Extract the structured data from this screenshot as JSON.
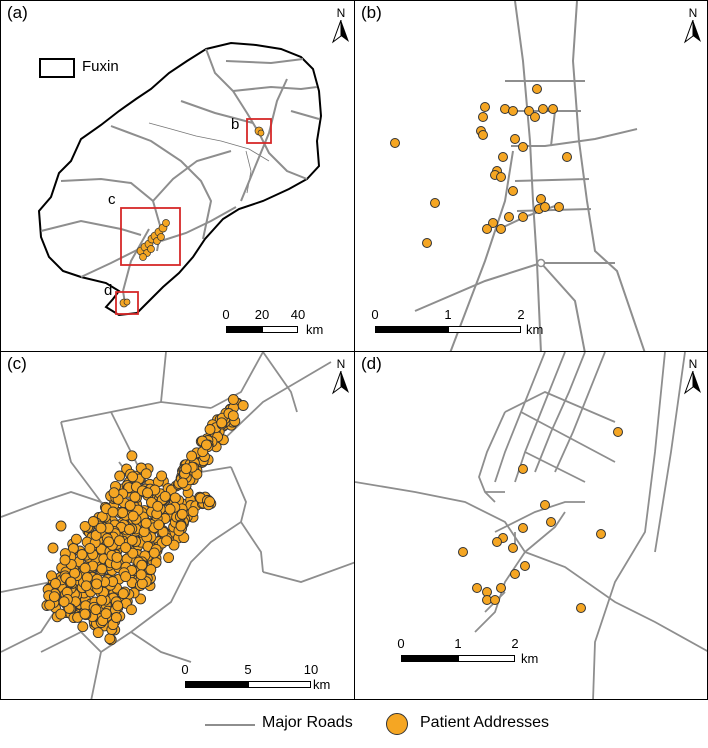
{
  "panels": [
    {
      "label": "(a)",
      "scale_ticks": [
        "0",
        "20",
        "40"
      ],
      "scale_unit": "km"
    },
    {
      "label": "(b)",
      "scale_ticks": [
        "0",
        "1",
        "2"
      ],
      "scale_unit": "km"
    },
    {
      "label": "(c)",
      "scale_ticks": [
        "0",
        "5",
        "10"
      ],
      "scale_unit": "km"
    },
    {
      "label": "(d)",
      "scale_ticks": [
        "0",
        "1",
        "2"
      ],
      "scale_unit": "km"
    }
  ],
  "north_label": "N",
  "inset_legend": {
    "label": "Fuxin"
  },
  "inset_boxes": [
    "b",
    "c",
    "d"
  ],
  "legend": {
    "roads_label": "Major Roads",
    "patients_label": "Patient Addresses"
  },
  "colors": {
    "roads": "#8e8e8e",
    "patients": "#f5a623",
    "inset_box": "#d62828"
  }
}
